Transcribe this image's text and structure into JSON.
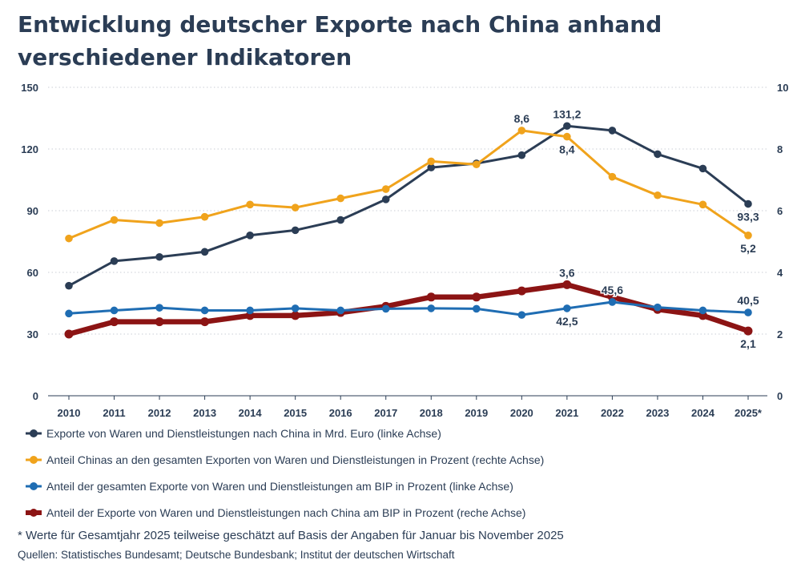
{
  "title_lines": [
    "Entwicklung deutscher Exporte nach China anhand",
    "verschiedener Indikatoren"
  ],
  "footnote": "* Werte für Gesamtjahr 2025 teilweise geschätzt auf Basis der Angaben für Januar bis November 2025",
  "sources": "Quellen: Statistisches Bundesamt; Deutsche Bundesbank; Institut der deutschen Wirtschaft",
  "chart_data": {
    "type": "line",
    "x": [
      "2010",
      "2011",
      "2012",
      "2013",
      "2014",
      "2015",
      "2016",
      "2017",
      "2018",
      "2019",
      "2020",
      "2021",
      "2022",
      "2023",
      "2024",
      "2025*"
    ],
    "left_axis": {
      "ylim": [
        0,
        150
      ],
      "ticks": [
        "0",
        "30",
        "60",
        "90",
        "120",
        "150"
      ]
    },
    "right_axis": {
      "ylim": [
        0,
        10
      ],
      "ticks": [
        "0",
        "2",
        "4",
        "6",
        "8",
        "10"
      ]
    },
    "grid": true,
    "legend_position": "bottom",
    "series": [
      {
        "name": "Exporte von Waren und Dienstleistungen nach China in Mrd. Euro (linke Achse)",
        "axis": "left",
        "color": "#2b3d55",
        "style": "line",
        "values": [
          53.5,
          65.5,
          67.5,
          70,
          78,
          80.5,
          85.5,
          95.5,
          111,
          113,
          117,
          131.2,
          129,
          117.5,
          110.5,
          93.3
        ],
        "labels": [
          {
            "index": 11,
            "text": "131,2",
            "position": "above"
          },
          {
            "index": 15,
            "text": "93,3",
            "position": "below"
          }
        ]
      },
      {
        "name": "Anteil Chinas an den gesamten Exporten von Waren und Dienstleistungen in Prozent (rechte Achse)",
        "axis": "right",
        "color": "#f0a31c",
        "style": "line",
        "values": [
          5.1,
          5.7,
          5.6,
          5.8,
          6.2,
          6.1,
          6.4,
          6.7,
          7.6,
          7.5,
          8.6,
          8.4,
          7.1,
          6.5,
          6.2,
          5.2
        ],
        "labels": [
          {
            "index": 10,
            "text": "8,6",
            "position": "above"
          },
          {
            "index": 11,
            "text": "8,4",
            "position": "below"
          },
          {
            "index": 15,
            "text": "5,2",
            "position": "below"
          }
        ]
      },
      {
        "name": "Anteil der gesamten Exporte von Waren und Dienstleistungen am BIP in Prozent (linke Achse)",
        "axis": "left",
        "color": "#1f6db3",
        "style": "line",
        "values": [
          40,
          41.5,
          42.8,
          41.5,
          41.5,
          42.5,
          41.5,
          42.3,
          42.5,
          42.3,
          39.3,
          42.5,
          45.6,
          43,
          41.5,
          40.5
        ],
        "labels": [
          {
            "index": 11,
            "text": "42,5",
            "position": "below"
          },
          {
            "index": 12,
            "text": "45,6",
            "position": "above"
          },
          {
            "index": 15,
            "text": "40,5",
            "position": "above"
          }
        ]
      },
      {
        "name": "Anteil der Exporte von Waren und Dienstleistungen nach China am BIP in Prozent (reche Achse)",
        "axis": "right",
        "color": "#8c1414",
        "style": "thick",
        "values": [
          2.0,
          2.4,
          2.4,
          2.4,
          2.6,
          2.6,
          2.7,
          2.9,
          3.2,
          3.2,
          3.4,
          3.6,
          3.2,
          2.8,
          2.6,
          2.1
        ],
        "labels": [
          {
            "index": 11,
            "text": "3,6",
            "position": "above"
          },
          {
            "index": 15,
            "text": "2,1",
            "position": "below"
          }
        ]
      }
    ]
  }
}
